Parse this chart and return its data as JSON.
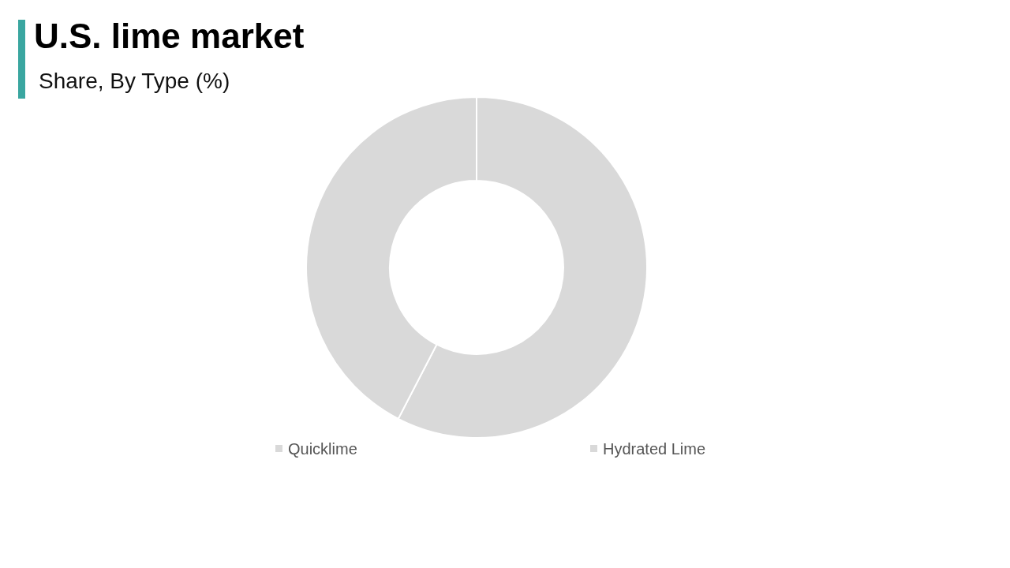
{
  "chart_data": {
    "type": "donut",
    "title": "U.S. lime market",
    "subtitle": "Share, By Type  (%)",
    "categories": [
      "Quicklime",
      "Hydrated Lime"
    ],
    "values": [
      57.6,
      42.4
    ],
    "colors": [
      "#d9d9d9",
      "#d9d9d9"
    ],
    "legend": "bottom"
  }
}
